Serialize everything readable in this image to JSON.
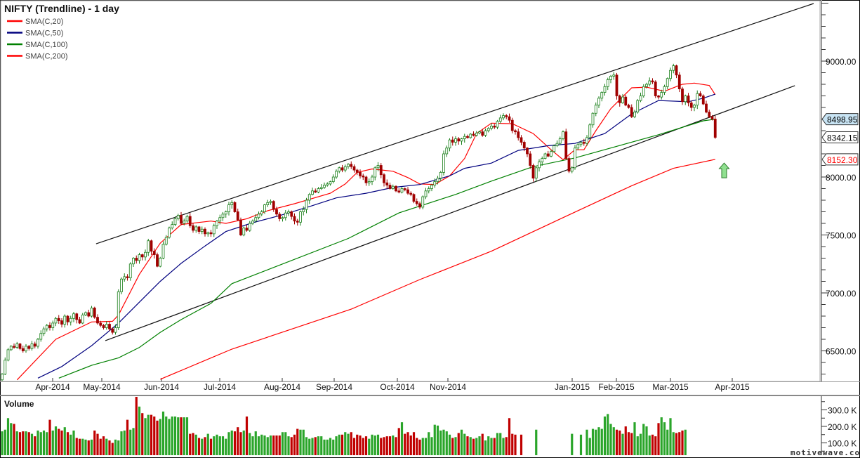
{
  "chart_data": {
    "type": "candlestick",
    "title": "NIFTY (Trendline) - 1 day",
    "legend": [
      {
        "name": "SMA(C,20)",
        "color": "#ff0000"
      },
      {
        "name": "SMA(C,50)",
        "color": "#00007f"
      },
      {
        "name": "SMA(C,100)",
        "color": "#008000"
      },
      {
        "name": "SMA(C,200)",
        "color": "#ff0000"
      }
    ],
    "legend_placement": "top-left",
    "ylim": [
      6236,
      9520
    ],
    "price_axis_ticks": [
      "6500.00",
      "7000.00",
      "7500.00",
      "8000.00",
      "9000.00"
    ],
    "date_labels": [
      "Apr-2014",
      "May-2014",
      "Jun-2014",
      "Jul-2014",
      "Aug-2014",
      "Sep-2014",
      "Oct-2014",
      "Nov-2014",
      "Jan-2015",
      "Feb-2015",
      "Mar-2015",
      "Apr-2015"
    ],
    "first_open": 6250,
    "closes": [
      6300,
      6420,
      6510,
      6540,
      6530,
      6560,
      6520,
      6500,
      6540,
      6520,
      6560,
      6540,
      6600,
      6650,
      6690,
      6720,
      6700,
      6740,
      6780,
      6760,
      6730,
      6800,
      6750,
      6780,
      6820,
      6770,
      6740,
      6810,
      6830,
      6800,
      6870,
      6790,
      6740,
      6720,
      6700,
      6730,
      6690,
      6660,
      6700,
      7010,
      7120,
      7140,
      7130,
      7250,
      7300,
      7280,
      7330,
      7310,
      7350,
      7450,
      7360,
      7330,
      7230,
      7300,
      7420,
      7480,
      7560,
      7590,
      7640,
      7670,
      7600,
      7620,
      7660,
      7580,
      7540,
      7570,
      7530,
      7550,
      7510,
      7520,
      7510,
      7580,
      7620,
      7650,
      7680,
      7700,
      7760,
      7780,
      7700,
      7630,
      7500,
      7560,
      7540,
      7600,
      7620,
      7650,
      7680,
      7700,
      7760,
      7780,
      7790,
      7720,
      7680,
      7640,
      7650,
      7690,
      7700,
      7660,
      7620,
      7610,
      7700,
      7720,
      7800,
      7850,
      7880,
      7870,
      7900,
      7910,
      7930,
      7940,
      7960,
      8000,
      8050,
      8080,
      8060,
      8090,
      8110,
      8090,
      8060,
      8040,
      8010,
      8000,
      7950,
      7960,
      8000,
      8080,
      8100,
      8020,
      7950,
      7930,
      7900,
      7920,
      7880,
      7870,
      7900,
      7890,
      7860,
      7850,
      7790,
      7770,
      7740,
      7830,
      7880,
      7900,
      7930,
      7960,
      7990,
      8040,
      8200,
      8250,
      8320,
      8300,
      8330,
      8310,
      8330,
      8350,
      8340,
      8370,
      8360,
      8380,
      8390,
      8360,
      8400,
      8420,
      8440,
      8430,
      8480,
      8510,
      8530,
      8520,
      8490,
      8400,
      8390,
      8340,
      8300,
      8250,
      8200,
      8100,
      7990,
      8080,
      8130,
      8160,
      8200,
      8180,
      8220,
      8270,
      8290,
      8330,
      8390,
      8160,
      8050,
      8080,
      8250,
      8280,
      8300,
      8290,
      8340,
      8450,
      8550,
      8620,
      8680,
      8730,
      8780,
      8840,
      8870,
      8880,
      8700,
      8640,
      8690,
      8620,
      8600,
      8520,
      8560,
      8660,
      8700,
      8780,
      8800,
      8830,
      8820,
      8700,
      8690,
      8730,
      8780,
      8850,
      8920,
      8960,
      8880,
      8760,
      8650,
      8700,
      8640,
      8600,
      8620,
      8720,
      8700,
      8630,
      8560,
      8520,
      8500,
      8342.15
    ],
    "sma": [
      {
        "name": "SMA(C,20)",
        "color": "#ff0000",
        "bars": [
          5,
          18,
          30,
          37,
          39,
          46,
          53,
          60,
          70,
          75,
          82,
          89,
          98,
          110,
          115,
          119,
          124,
          131,
          136,
          140,
          145,
          150,
          155,
          159,
          164,
          171,
          178,
          184,
          188,
          192,
          195,
          199,
          204,
          211,
          216,
          222,
          228,
          232,
          237,
          239
        ],
        "values": [
          6250,
          6600,
          6750,
          6755,
          6810,
          7160,
          7430,
          7590,
          7620,
          7600,
          7640,
          7710,
          7770,
          7860,
          7940,
          8040,
          8070,
          8050,
          7995,
          7940,
          7935,
          8010,
          8160,
          8375,
          8465,
          8460,
          8375,
          8235,
          8150,
          8235,
          8235,
          8400,
          8590,
          8770,
          8775,
          8740,
          8800,
          8810,
          8790,
          8710
        ]
      },
      {
        "name": "SMA(C,50)",
        "color": "#00007f",
        "bars": [
          12,
          20,
          30,
          39,
          46,
          53,
          60,
          68,
          75,
          84,
          93,
          103,
          112,
          122,
          131,
          140,
          150,
          155,
          164,
          173,
          183,
          192,
          202,
          211,
          220,
          230,
          235,
          239
        ],
        "values": [
          6265,
          6365,
          6545,
          6740,
          6920,
          7100,
          7255,
          7405,
          7530,
          7606,
          7667,
          7745,
          7820,
          7860,
          7910,
          7935,
          8010,
          8075,
          8120,
          8230,
          8270,
          8290,
          8375,
          8545,
          8660,
          8650,
          8680,
          8715
        ]
      },
      {
        "name": "SMA(C,100)",
        "color": "#008000",
        "bars": [
          19,
          30,
          39,
          46,
          53,
          60,
          70,
          77,
          116,
          133,
          152,
          164,
          178,
          192,
          206,
          220,
          235,
          239
        ],
        "values": [
          6265,
          6375,
          6440,
          6530,
          6660,
          6770,
          6910,
          7080,
          7470,
          7690,
          7850,
          7965,
          8090,
          8165,
          8265,
          8365,
          8485,
          8499
        ]
      },
      {
        "name": "SMA(C,200)",
        "color": "#ff0000",
        "bars": [
          53,
          77,
          117,
          140,
          164,
          188,
          211,
          225,
          239
        ],
        "values": [
          6255,
          6515,
          6860,
          7115,
          7360,
          7650,
          7925,
          8075,
          8152.3
        ]
      }
    ],
    "trendlines": [
      {
        "from": {
          "bar": 31.5,
          "price": 7424
        },
        "to": {
          "bar": 272,
          "price": 9497
        }
      },
      {
        "from": {
          "bar": 34.6,
          "price": 6588
        },
        "to": {
          "bar": 265.7,
          "price": 8788
        }
      }
    ],
    "price_labels": [
      {
        "text": "8498.95",
        "value": 8498.95,
        "bg": "#c8e4f4",
        "fg": "#000000"
      },
      {
        "text": "8342.15",
        "value": 8342.15,
        "bg": "#ffffff",
        "fg": "#000000"
      },
      {
        "text": "8152.30",
        "value": 8152.3,
        "bg": "#ffffff",
        "fg": "#ff0000"
      }
    ],
    "annotation": {
      "type": "up-arrow",
      "color": "#90e090",
      "bar": 242,
      "price": 8060
    },
    "volume": {
      "title": "Volume",
      "unit": "K",
      "axis_ticks": [
        "100.0 K",
        "200.0 K",
        "300.0 K"
      ],
      "values": [
        170,
        180,
        250,
        220,
        215,
        170,
        165,
        170,
        170,
        165,
        155,
        140,
        175,
        165,
        175,
        165,
        240,
        175,
        200,
        185,
        175,
        195,
        165,
        150,
        175,
        130,
        125,
        125,
        120,
        115,
        120,
        175,
        155,
        125,
        140,
        125,
        115,
        100,
        120,
        115,
        170,
        175,
        240,
        180,
        190,
        390,
        320,
        280,
        250,
        270,
        270,
        260,
        235,
        245,
        290,
        260,
        245,
        260,
        260,
        255,
        255,
        255,
        255,
        155,
        160,
        150,
        130,
        125,
        135,
        155,
        125,
        140,
        150,
        140,
        140,
        125,
        165,
        175,
        170,
        195,
        165,
        175,
        260,
        160,
        140,
        170,
        140,
        150,
        145,
        135,
        145,
        145,
        145,
        145,
        165,
        165,
        140,
        135,
        150,
        185,
        180,
        180,
        135,
        125,
        130,
        135,
        140,
        140,
        120,
        120,
        130,
        120,
        140,
        150,
        150,
        165,
        155,
        165,
        130,
        150,
        145,
        130,
        140,
        125,
        150,
        145,
        150,
        130,
        135,
        140,
        140,
        145,
        135,
        190,
        225,
        155,
        165,
        145,
        165,
        130,
        120,
        130,
        130,
        165,
        135,
        210,
        205,
        175,
        180,
        170,
        150,
        130,
        135,
        160,
        180,
        155,
        140,
        135,
        125,
        130,
        140,
        155,
        115,
        140,
        130,
        130,
        160,
        160,
        130,
        135,
        250,
        155,
        150,
        0,
        150,
        0,
        0,
        0,
        0,
        180,
        0,
        0,
        0,
        0,
        0,
        0,
        0,
        0,
        0,
        0,
        0,
        155,
        0,
        0,
        150,
        0,
        180,
        130,
        185,
        180,
        195,
        185,
        260,
        275,
        215,
        195,
        180,
        175,
        155,
        200,
        165,
        160,
        225,
        140,
        155,
        215,
        200,
        145,
        150,
        140,
        220,
        255,
        225,
        180,
        250,
        165,
        160,
        165,
        175,
        180,
        0,
        0,
        0,
        0,
        0,
        0,
        0,
        0,
        0,
        0
      ]
    },
    "colors": {
      "up": "#1a7f1a",
      "down": "#a00000",
      "vol_up": "#2aa52a",
      "vol_down": "#c00000"
    }
  },
  "watermark": "motivewave.com"
}
